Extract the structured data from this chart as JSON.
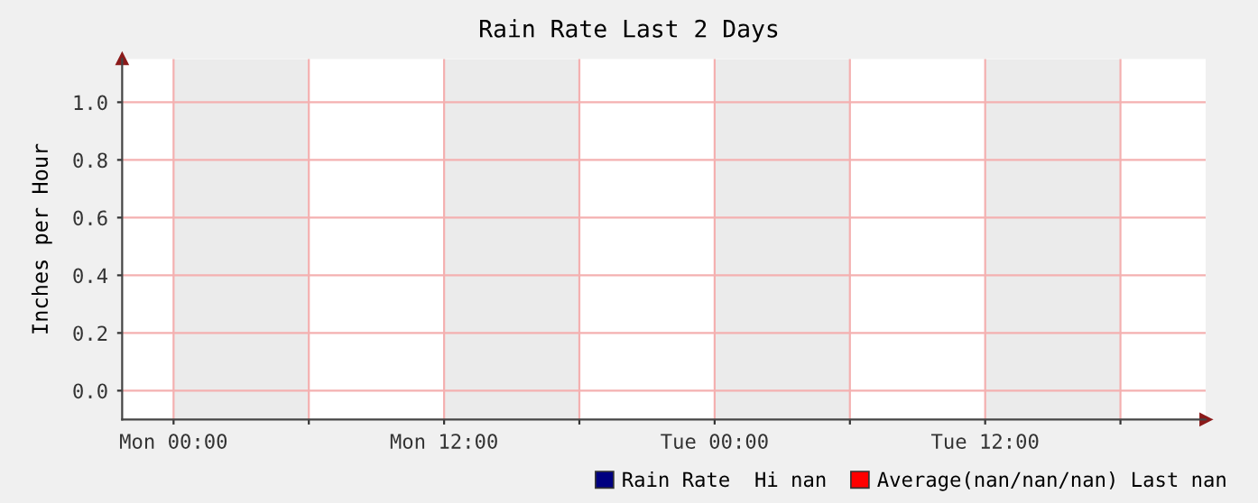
{
  "chart_data": {
    "type": "line",
    "title": "Rain Rate Last 2 Days",
    "ylabel": "Inches per Hour",
    "categories": [
      "Mon 00:00",
      null,
      "Mon 12:00",
      null,
      "Tue 00:00",
      null,
      "Tue 12:00",
      null
    ],
    "series": [
      {
        "name": "Rain Rate  Hi nan",
        "color": "#000080",
        "values": [
          null,
          null,
          null,
          null,
          null,
          null,
          null,
          null
        ]
      },
      {
        "name": "Average(nan/nan/nan) Last nan",
        "color": "#ff0000",
        "values": [
          null,
          null,
          null,
          null,
          null,
          null,
          null,
          null
        ]
      }
    ],
    "ylim": [
      -0.1,
      1.15
    ],
    "yticks": [
      {
        "value": 0,
        "label": "0.0"
      },
      {
        "value": 0.2,
        "label": "0.2"
      },
      {
        "value": 0.4,
        "label": "0.4"
      },
      {
        "value": 0.6,
        "label": "0.6"
      },
      {
        "value": 0.8,
        "label": "0.8"
      },
      {
        "value": 1.0,
        "label": "1.0"
      }
    ],
    "grid": true,
    "legend": "bottom right"
  }
}
